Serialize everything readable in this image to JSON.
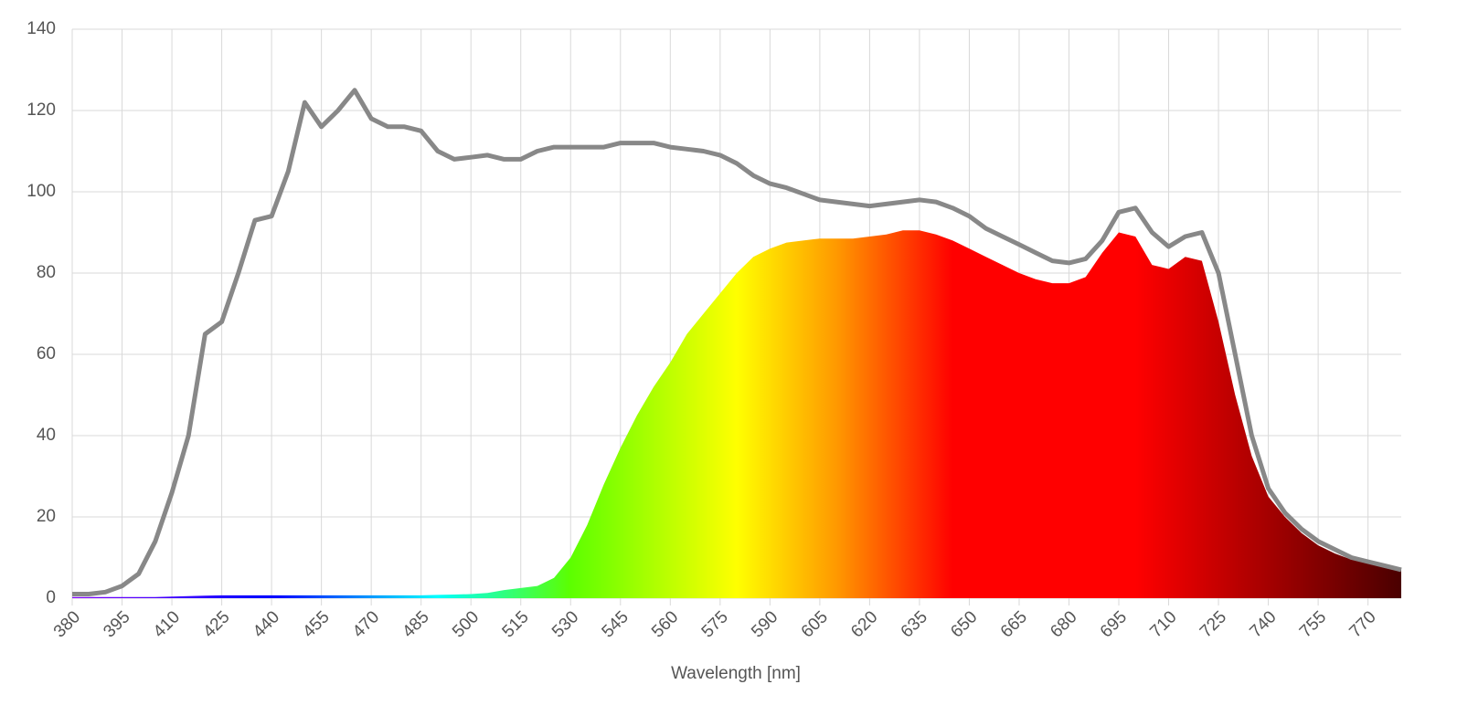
{
  "chart_data": {
    "type": "spectrum",
    "x_label": "Wavelength [nm]",
    "x": [
      380,
      385,
      390,
      395,
      400,
      405,
      410,
      415,
      420,
      425,
      430,
      435,
      440,
      445,
      450,
      455,
      460,
      465,
      470,
      475,
      480,
      485,
      490,
      495,
      500,
      505,
      510,
      515,
      520,
      525,
      530,
      535,
      540,
      545,
      550,
      555,
      560,
      565,
      570,
      575,
      580,
      585,
      590,
      595,
      600,
      605,
      610,
      615,
      620,
      625,
      630,
      635,
      640,
      645,
      650,
      655,
      660,
      665,
      670,
      675,
      680,
      685,
      690,
      695,
      700,
      705,
      710,
      715,
      720,
      725,
      730,
      735,
      740,
      745,
      750,
      755,
      760,
      765,
      770,
      775,
      780
    ],
    "series": [
      {
        "kind": "line",
        "color": "#888888",
        "values": [
          1,
          1,
          1.5,
          3,
          6,
          14,
          26,
          40,
          65,
          68,
          80,
          93,
          94,
          105,
          122,
          116,
          120,
          125,
          118,
          116,
          116,
          115,
          110,
          108,
          108.5,
          109,
          108,
          108,
          110,
          111,
          111,
          111,
          111,
          112,
          112,
          112,
          111,
          110.5,
          110,
          109,
          107,
          104,
          102,
          101,
          99.5,
          98,
          97.5,
          97,
          96.5,
          97,
          97.5,
          98,
          97.5,
          96,
          94,
          91,
          89,
          87,
          85,
          83,
          82.5,
          83.5,
          88,
          95,
          96,
          90,
          86.5,
          89,
          90,
          80,
          60,
          40,
          27,
          21,
          17,
          14,
          12,
          10,
          9,
          8,
          7
        ]
      },
      {
        "kind": "area",
        "gradient": [
          {
            "x": 380,
            "color": "#7f00ff"
          },
          {
            "x": 440,
            "color": "#0000ff"
          },
          {
            "x": 490,
            "color": "#00ffff"
          },
          {
            "x": 530,
            "color": "#5cff00"
          },
          {
            "x": 580,
            "color": "#ffff00"
          },
          {
            "x": 610,
            "color": "#ff9900"
          },
          {
            "x": 645,
            "color": "#ff0000"
          },
          {
            "x": 700,
            "color": "#ff0000"
          },
          {
            "x": 780,
            "color": "#4a0000"
          }
        ],
        "values": [
          0.3,
          0.3,
          0.3,
          0.3,
          0.3,
          0.3,
          0.4,
          0.5,
          0.6,
          0.7,
          0.7,
          0.7,
          0.7,
          0.7,
          0.7,
          0.7,
          0.7,
          0.7,
          0.7,
          0.7,
          0.7,
          0.7,
          0.8,
          0.9,
          1,
          1.3,
          2,
          2.5,
          3,
          5,
          10,
          18,
          28,
          37,
          45,
          52,
          58,
          65,
          70,
          75,
          80,
          84,
          86,
          87.5,
          88,
          88.5,
          88.5,
          88.5,
          89,
          89.5,
          90.5,
          90.5,
          89.5,
          88,
          86,
          84,
          82,
          80,
          78.5,
          77.5,
          77.5,
          79,
          85,
          90,
          89,
          82,
          81,
          84,
          83,
          68,
          50,
          35,
          25,
          20,
          16,
          13,
          11,
          9.5,
          8.5,
          7.5,
          7
        ]
      }
    ],
    "xlim": [
      380,
      780
    ],
    "ylim": [
      0,
      140
    ],
    "xticks": [
      380,
      395,
      410,
      425,
      440,
      455,
      470,
      485,
      500,
      515,
      530,
      545,
      560,
      575,
      590,
      605,
      620,
      635,
      650,
      665,
      680,
      695,
      710,
      725,
      740,
      755,
      770
    ],
    "yticks": [
      0,
      20,
      40,
      60,
      80,
      100,
      120,
      140
    ],
    "grid": true
  }
}
